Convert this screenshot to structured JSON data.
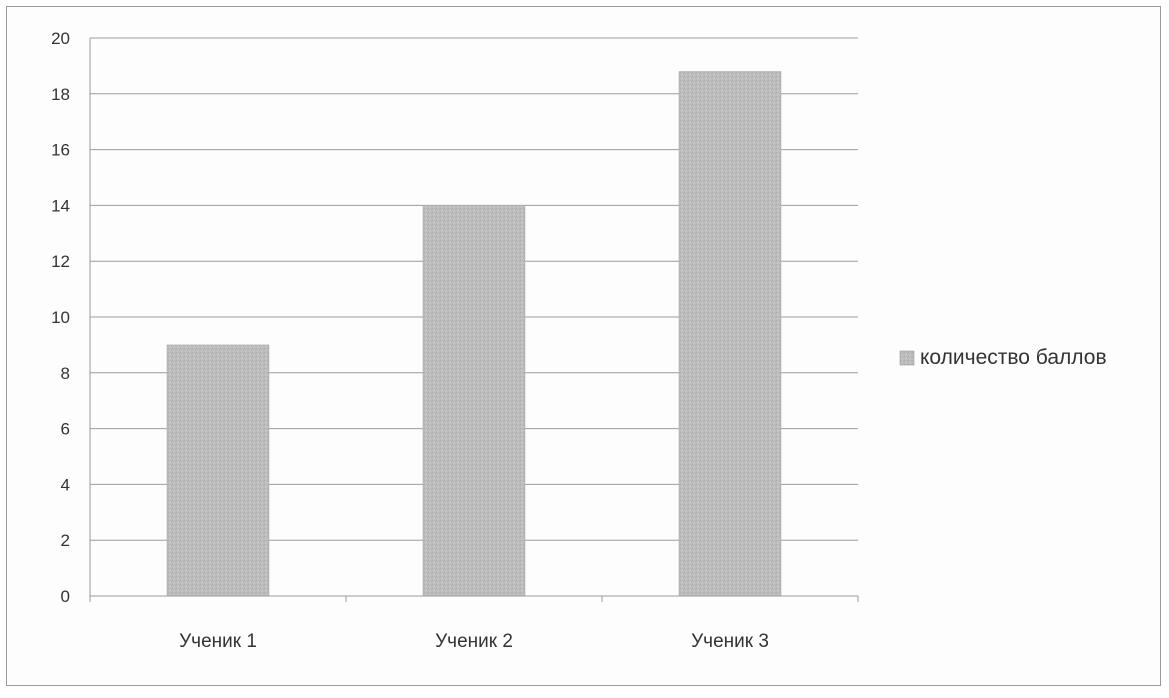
{
  "chart_data": {
    "type": "bar",
    "categories": [
      "Ученик 1",
      "Ученик 2",
      "Ученик 3"
    ],
    "series": [
      {
        "name": "количество баллов",
        "values": [
          9,
          14,
          18.8
        ]
      }
    ],
    "ylim": [
      0,
      20
    ],
    "yticks": [
      0,
      2,
      4,
      6,
      8,
      10,
      12,
      14,
      16,
      18,
      20
    ],
    "grid": true,
    "legend_position": "right",
    "colors": {
      "bar": "#b8b8b8",
      "grid": "#8c8c8c",
      "axis": "#9a9a9a",
      "text": "#333333"
    }
  }
}
